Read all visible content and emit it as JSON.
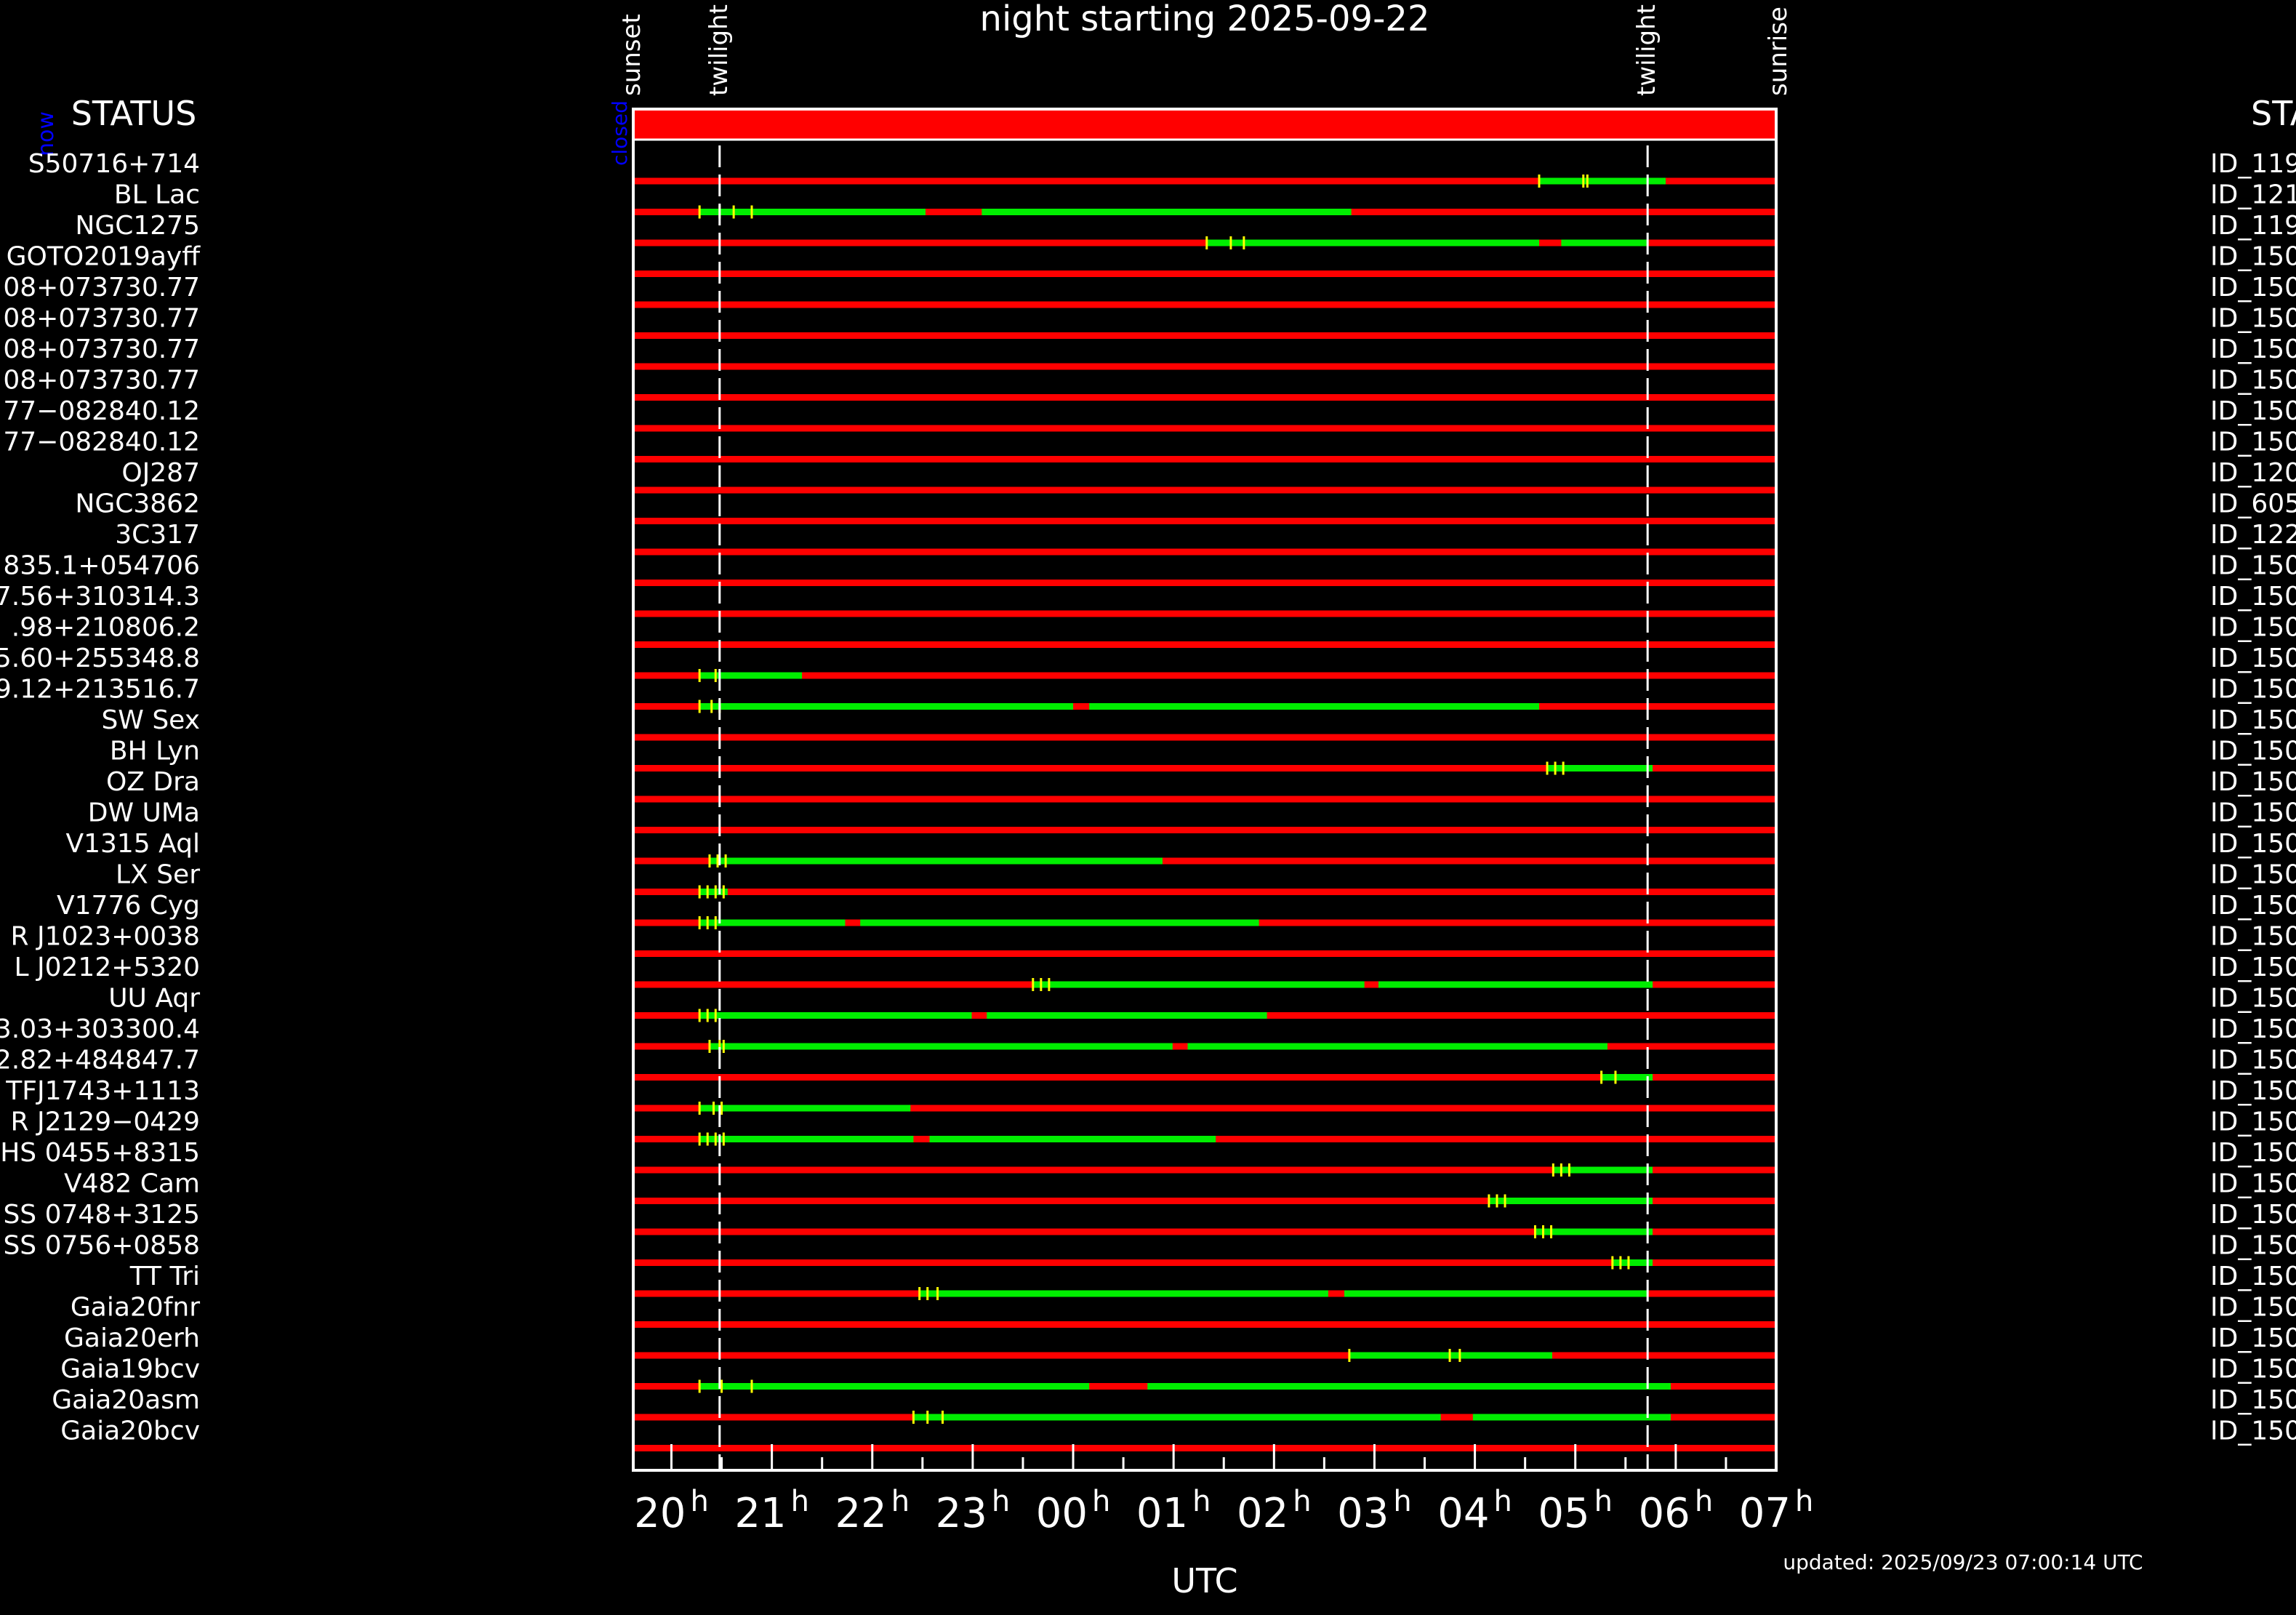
{
  "title": "night starting 2025-09-22",
  "status_label_left": "STATUS",
  "status_label_right": "STAT",
  "now_label": "now",
  "closed_label": "closed",
  "axis": {
    "xlabel": "UTC",
    "tick_hours": [
      "20",
      "21",
      "22",
      "23",
      "00",
      "01",
      "02",
      "03",
      "04",
      "05",
      "06",
      "07"
    ],
    "hour_suffix": "h"
  },
  "events": {
    "sunset": "sunset",
    "twilight_evening": "twilight",
    "twilight_morning": "twilight",
    "sunrise": "sunrise"
  },
  "updated": "updated: 2025/09/23 07:00:14 UTC",
  "colors": {
    "background": "#000000",
    "unavailable": "#ff0000",
    "observable": "#00ee00",
    "marker": "#ffff00",
    "text": "#ffffff",
    "now_text": "#0000ff"
  },
  "chart_data": {
    "type": "table",
    "x_unit": "hours UTC (values above 24 = next morning)",
    "xlim": [
      19.62,
      31.0
    ],
    "sunset": 19.62,
    "twilight_evening": 20.48,
    "twilight_morning": 29.72,
    "sunrise": 31.0,
    "rows": [
      {
        "name": "S50716+714",
        "id": "ID_119",
        "observable": [
          [
            28.64,
            29.9
          ]
        ],
        "markers": [
          28.64,
          29.08,
          29.12
        ]
      },
      {
        "name": "BL Lac",
        "id": "ID_121",
        "observable": [
          [
            20.28,
            22.53
          ],
          [
            23.09,
            26.77
          ]
        ],
        "markers": [
          20.28,
          20.48,
          20.62,
          20.8
        ]
      },
      {
        "name": "NGC1275",
        "id": "ID_119",
        "observable": [
          [
            25.33,
            28.64
          ],
          [
            28.86,
            29.72
          ]
        ],
        "markers": [
          25.33,
          25.57,
          25.7
        ]
      },
      {
        "name": "GOTO2019ayff",
        "id": "ID_150",
        "observable": [],
        "markers": []
      },
      {
        "name": "08+073730.77",
        "id": "ID_150",
        "observable": [],
        "markers": []
      },
      {
        "name": "08+073730.77",
        "id": "ID_150",
        "observable": [],
        "markers": []
      },
      {
        "name": "08+073730.77",
        "id": "ID_150",
        "observable": [],
        "markers": []
      },
      {
        "name": "08+073730.77",
        "id": "ID_150",
        "observable": [],
        "markers": []
      },
      {
        "name": "77−082840.12",
        "id": "ID_150",
        "observable": [],
        "markers": []
      },
      {
        "name": "77−082840.12",
        "id": "ID_150",
        "observable": [],
        "markers": []
      },
      {
        "name": "OJ287",
        "id": "ID_120",
        "observable": [],
        "markers": []
      },
      {
        "name": "NGC3862",
        "id": "ID_605",
        "observable": [],
        "markers": []
      },
      {
        "name": "3C317",
        "id": "ID_122",
        "observable": [],
        "markers": []
      },
      {
        "name": "835.1+054706",
        "id": "ID_150",
        "observable": [],
        "markers": []
      },
      {
        "name": "7.56+310314.3",
        "id": "ID_150",
        "observable": [],
        "markers": []
      },
      {
        "name": ".98+210806.2",
        "id": "ID_150",
        "observable": [],
        "markers": []
      },
      {
        "name": "5.60+255348.8",
        "id": "ID_150",
        "observable": [
          [
            20.28,
            21.3
          ]
        ],
        "markers": [
          20.28,
          20.44
        ]
      },
      {
        "name": "9.12+213516.7",
        "id": "ID_150",
        "observable": [
          [
            20.28,
            24.0
          ],
          [
            24.16,
            28.64
          ]
        ],
        "markers": [
          20.28,
          20.4,
          20.48
        ]
      },
      {
        "name": "SW Sex",
        "id": "ID_150",
        "observable": [],
        "markers": []
      },
      {
        "name": "BH Lyn",
        "id": "ID_150",
        "observable": [
          [
            28.72,
            29.77
          ]
        ],
        "markers": [
          28.72,
          28.8,
          28.88
        ]
      },
      {
        "name": "OZ Dra",
        "id": "ID_150",
        "observable": [],
        "markers": []
      },
      {
        "name": "DW UMa",
        "id": "ID_150",
        "observable": [],
        "markers": []
      },
      {
        "name": "V1315 Aql",
        "id": "ID_150",
        "observable": [
          [
            20.38,
            24.89
          ]
        ],
        "markers": [
          20.38,
          20.46,
          20.54
        ]
      },
      {
        "name": "LX Ser",
        "id": "ID_150",
        "observable": [
          [
            20.28,
            20.56
          ]
        ],
        "markers": [
          20.28,
          20.36,
          20.44,
          20.52
        ]
      },
      {
        "name": "V1776 Cyg",
        "id": "ID_150",
        "observable": [
          [
            20.28,
            21.73
          ],
          [
            21.88,
            25.85
          ]
        ],
        "markers": [
          20.28,
          20.36,
          20.44
        ]
      },
      {
        "name": "R J1023+0038",
        "id": "ID_150",
        "observable": [],
        "markers": []
      },
      {
        "name": "L J0212+5320",
        "id": "ID_150",
        "observable": [
          [
            23.6,
            26.9
          ],
          [
            27.04,
            29.77
          ]
        ],
        "markers": [
          23.6,
          23.68,
          23.76
        ]
      },
      {
        "name": "UU Aqr",
        "id": "ID_150",
        "observable": [
          [
            20.28,
            22.99
          ],
          [
            23.14,
            25.93
          ]
        ],
        "markers": [
          20.28,
          20.36,
          20.44
        ]
      },
      {
        "name": "3.03+303300.4",
        "id": "ID_150",
        "observable": [
          [
            20.38,
            24.99
          ],
          [
            25.14,
            29.32
          ]
        ],
        "markers": [
          20.38,
          20.48,
          20.52
        ]
      },
      {
        "name": "2.82+484847.7",
        "id": "ID_150",
        "observable": [
          [
            29.26,
            29.77
          ]
        ],
        "markers": [
          29.26,
          29.4
        ]
      },
      {
        "name": "TFJ1743+1113",
        "id": "ID_150",
        "observable": [
          [
            20.28,
            22.38
          ]
        ],
        "markers": [
          20.28,
          20.42,
          20.5
        ]
      },
      {
        "name": "R J2129−0429",
        "id": "ID_150",
        "observable": [
          [
            20.28,
            22.41
          ],
          [
            22.57,
            25.42
          ]
        ],
        "markers": [
          20.28,
          20.36,
          20.44,
          20.52
        ]
      },
      {
        "name": "HS 0455+8315",
        "id": "ID_150",
        "observable": [
          [
            28.78,
            29.77
          ]
        ],
        "markers": [
          28.78,
          28.86,
          28.94
        ]
      },
      {
        "name": "V482 Cam",
        "id": "ID_150",
        "observable": [
          [
            28.14,
            29.77
          ]
        ],
        "markers": [
          28.14,
          28.22,
          28.3
        ]
      },
      {
        "name": "SS 0748+3125",
        "id": "ID_150",
        "observable": [
          [
            28.6,
            29.77
          ]
        ],
        "markers": [
          28.6,
          28.68,
          28.76
        ]
      },
      {
        "name": "SS 0756+0858",
        "id": "ID_150",
        "observable": [
          [
            29.37,
            29.77
          ]
        ],
        "markers": [
          29.37,
          29.45,
          29.53
        ]
      },
      {
        "name": "TT Tri",
        "id": "ID_150",
        "observable": [
          [
            22.47,
            26.54
          ],
          [
            26.7,
            29.72
          ]
        ],
        "markers": [
          22.47,
          22.55,
          22.65
        ]
      },
      {
        "name": "Gaia20fnr",
        "id": "ID_150",
        "observable": [],
        "markers": []
      },
      {
        "name": "Gaia20erh",
        "id": "ID_150",
        "observable": [
          [
            26.75,
            28.77
          ]
        ],
        "markers": [
          26.75,
          27.75,
          27.85
        ]
      },
      {
        "name": "Gaia19bcv",
        "id": "ID_150",
        "observable": [
          [
            20.28,
            24.16
          ],
          [
            24.74,
            29.95
          ]
        ],
        "markers": [
          20.28,
          20.5,
          20.8
        ]
      },
      {
        "name": "Gaia20asm",
        "id": "ID_150",
        "observable": [
          [
            22.41,
            27.66
          ],
          [
            27.98,
            29.95
          ]
        ],
        "markers": [
          22.41,
          22.55,
          22.7
        ]
      },
      {
        "name": "Gaia20bcv",
        "id": "ID_150",
        "observable": [],
        "markers": []
      }
    ]
  }
}
